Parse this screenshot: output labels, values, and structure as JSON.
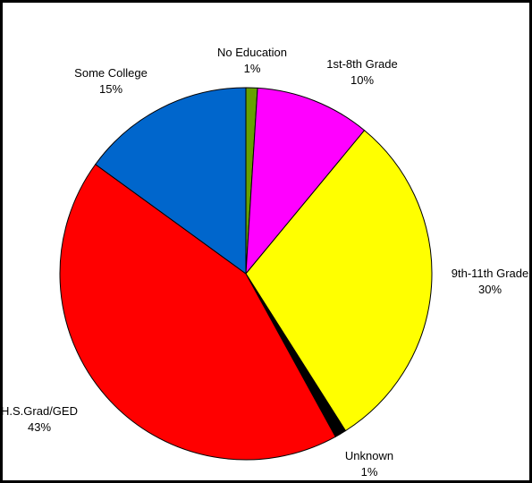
{
  "chart_data": {
    "type": "pie",
    "start_angle_deg": 0,
    "direction": "clockwise",
    "slices": [
      {
        "label": "No Education",
        "value": 1,
        "value_label": "1%",
        "color": "#66A000"
      },
      {
        "label": "1st-8th Grade",
        "value": 10,
        "value_label": "10%",
        "color": "#FF00FF"
      },
      {
        "label": "9th-11th Grade",
        "value": 30,
        "value_label": "30%",
        "color": "#FFFF00"
      },
      {
        "label": "Unknown",
        "value": 1,
        "value_label": "1%",
        "color": "#000000"
      },
      {
        "label": "H.S.Grad/GED",
        "value": 43,
        "value_label": "43%",
        "color": "#FF0000"
      },
      {
        "label": "Some College",
        "value": 15,
        "value_label": "15%",
        "color": "#0066CC"
      }
    ],
    "legend": "none"
  }
}
